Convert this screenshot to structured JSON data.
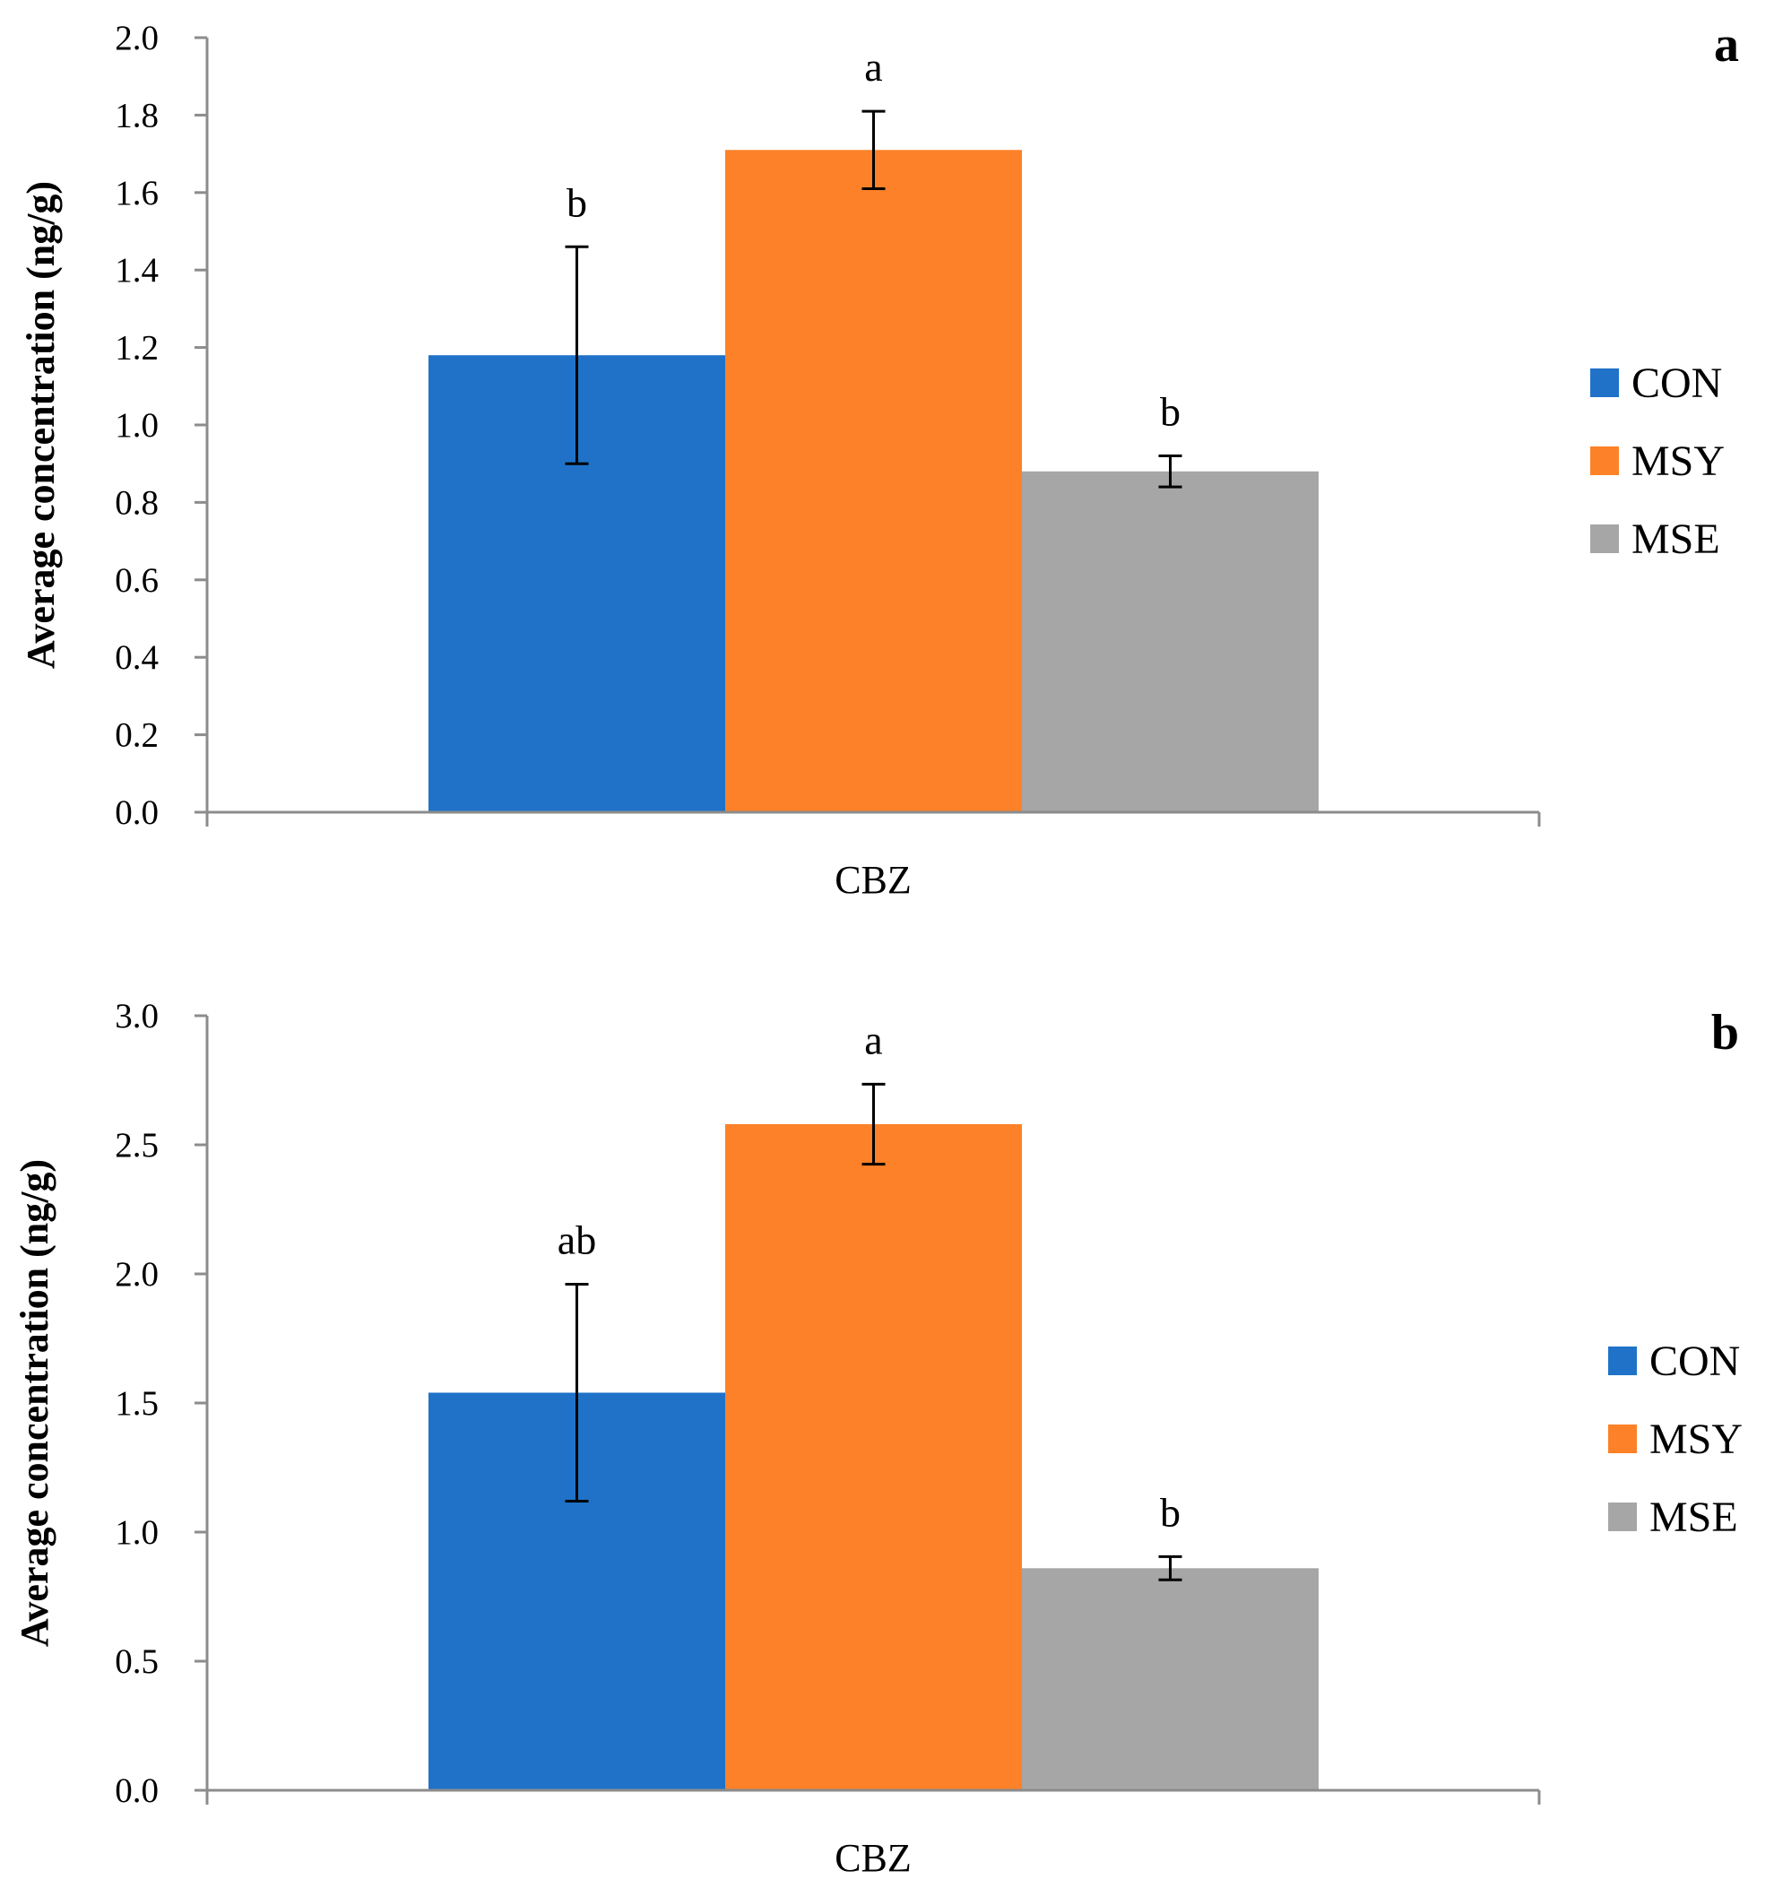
{
  "chart_data": [
    {
      "type": "bar",
      "panel_label": "a",
      "categories": [
        "CBZ"
      ],
      "ylabel": "Average concentration (ng/g)",
      "ylim": [
        0,
        2.0
      ],
      "yticks": [
        "0.0",
        "0.2",
        "0.4",
        "0.6",
        "0.8",
        "1.0",
        "1.2",
        "1.4",
        "1.6",
        "1.8",
        "2.0"
      ],
      "ytick_values": [
        0,
        0.2,
        0.4,
        0.6,
        0.8,
        1.0,
        1.2,
        1.4,
        1.6,
        1.8,
        2.0
      ],
      "legend_position": "right",
      "series": [
        {
          "name": "CON",
          "color": "#1f72c8",
          "values": [
            1.18
          ],
          "error": [
            0.28
          ],
          "label": "b"
        },
        {
          "name": "MSY",
          "color": "#fd8128",
          "values": [
            1.71
          ],
          "error": [
            0.1
          ],
          "label": "a"
        },
        {
          "name": "MSE",
          "color": "#a6a6a6",
          "values": [
            0.88
          ],
          "error": [
            0.04
          ],
          "label": "b"
        }
      ]
    },
    {
      "type": "bar",
      "panel_label": "b",
      "categories": [
        "CBZ"
      ],
      "ylabel": "Average concentration (ng/g)",
      "ylim": [
        0,
        3.0
      ],
      "yticks": [
        "0.0",
        "0.5",
        "1.0",
        "1.5",
        "2.0",
        "2.5",
        "3.0"
      ],
      "ytick_values": [
        0,
        0.5,
        1.0,
        1.5,
        2.0,
        2.5,
        3.0
      ],
      "legend_position": "right",
      "series": [
        {
          "name": "CON",
          "color": "#1f72c8",
          "values": [
            1.54
          ],
          "error": [
            0.42
          ],
          "label": "ab"
        },
        {
          "name": "MSY",
          "color": "#fd8128",
          "values": [
            2.58
          ],
          "error": [
            0.155
          ],
          "label": "a"
        },
        {
          "name": "MSE",
          "color": "#a6a6a6",
          "values": [
            0.86
          ],
          "error": [
            0.045
          ],
          "label": "b"
        }
      ]
    }
  ]
}
